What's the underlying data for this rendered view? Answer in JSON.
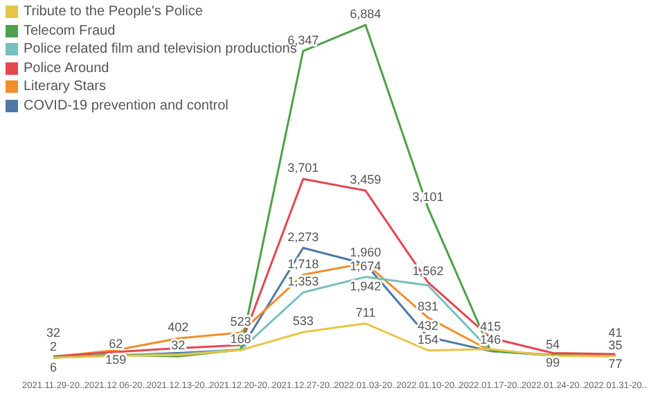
{
  "chart_data": {
    "type": "line",
    "legend": "top left",
    "marker": "none",
    "categories": [
      "2021.11.29-20..",
      "2021.12.06-20..",
      "2021.12.13-20..",
      "2021.12.20-20..",
      "2021.12.27-20..",
      "2022.01.03-20..",
      "2022.01.10-20..",
      "2022.01.17-20..",
      "2022.01.24-20..",
      "2022.01.31-20.."
    ],
    "series": [
      {
        "name": "Tribute to the People's Police",
        "color": "#e8c547",
        "values": [
          2,
          40,
          60,
          160,
          533,
          711,
          154,
          180,
          40,
          30
        ],
        "value_labels": [
          "2",
          null,
          null,
          null,
          "533",
          "711",
          "154",
          null,
          null,
          null
        ]
      },
      {
        "name": "Telecom Fraud",
        "color": "#4ea04a",
        "values": [
          6,
          62,
          32,
          168,
          6347,
          6884,
          3101,
          146,
          54,
          35
        ],
        "value_labels": [
          "6",
          "62",
          "32",
          "168",
          "6,347",
          "6,884",
          "3,101",
          "146",
          "54",
          "35"
        ]
      },
      {
        "name": "Police related film and television productions",
        "color": "#76bfbd",
        "values": [
          10,
          60,
          70,
          170,
          1353,
          1674,
          1500,
          150,
          45,
          35
        ],
        "value_labels": [
          null,
          null,
          null,
          null,
          "1,353",
          "1,674",
          null,
          null,
          null,
          null
        ]
      },
      {
        "name": "Police Around",
        "color": "#e4474e",
        "values": [
          32,
          120,
          200,
          265,
          3701,
          3459,
          1562,
          415,
          99,
          77
        ],
        "value_labels": [
          "32",
          null,
          null,
          null,
          "3,701",
          "3,459",
          "1,562",
          "415",
          "99",
          "77"
        ]
      },
      {
        "name": "Literary Stars",
        "color": "#f28e2b",
        "values": [
          20,
          159,
          402,
          523,
          1718,
          1960,
          831,
          146,
          60,
          40
        ],
        "value_labels": [
          null,
          "159",
          "402",
          "523",
          "1,718",
          "1,960",
          "831",
          null,
          null,
          null
        ]
      },
      {
        "name": "COVID-19 prevention and control",
        "color": "#4e79a7",
        "values": [
          5,
          50,
          100,
          168,
          2273,
          1942,
          432,
          140,
          50,
          41
        ],
        "value_labels": [
          null,
          null,
          null,
          null,
          "2,273",
          "1,942",
          "432",
          null,
          null,
          "41"
        ]
      }
    ]
  }
}
